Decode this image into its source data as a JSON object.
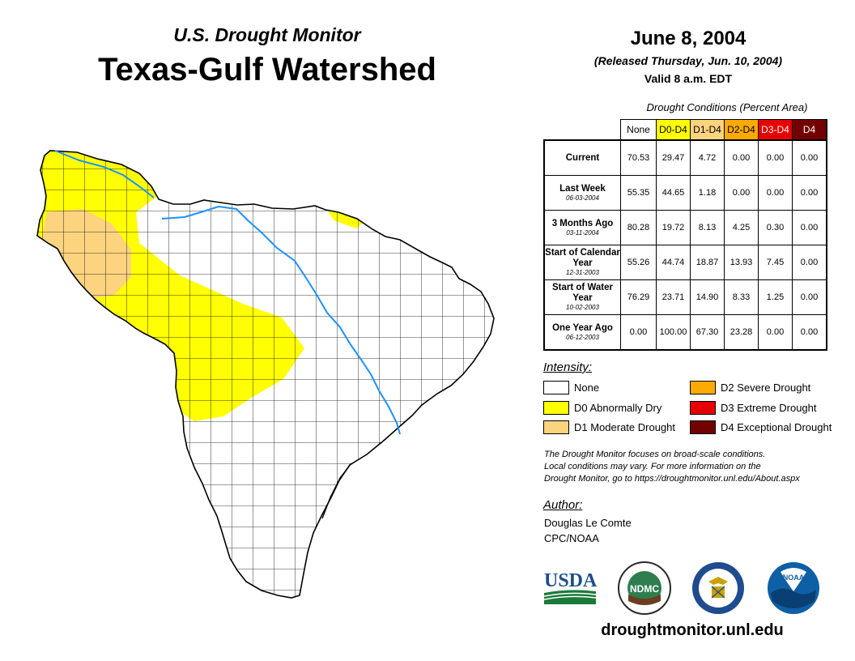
{
  "header": {
    "subtitle": "U.S. Drought Monitor",
    "title": "Texas-Gulf Watershed",
    "date": "June 8, 2004",
    "released": "(Released Thursday, Jun. 10, 2004)",
    "valid": "Valid 8 a.m. EDT"
  },
  "table": {
    "title": "Drought Conditions (Percent Area)",
    "columns": [
      "None",
      "D0-D4",
      "D1-D4",
      "D2-D4",
      "D3-D4",
      "D4"
    ],
    "column_colors": [
      "#ffffff",
      "#ffff00",
      "#fcd37f",
      "#ffaa00",
      "#e60000",
      "#730000"
    ],
    "rows": [
      {
        "label": "Current",
        "sub": "",
        "values": [
          "70.53",
          "29.47",
          "4.72",
          "0.00",
          "0.00",
          "0.00"
        ]
      },
      {
        "label": "Last Week",
        "sub": "06-03-2004",
        "values": [
          "55.35",
          "44.65",
          "1.18",
          "0.00",
          "0.00",
          "0.00"
        ]
      },
      {
        "label": "3 Months Ago",
        "sub": "03-11-2004",
        "values": [
          "80.28",
          "19.72",
          "8.13",
          "4.25",
          "0.30",
          "0.00"
        ]
      },
      {
        "label": "Start of Calendar Year",
        "sub": "12-31-2003",
        "values": [
          "55.26",
          "44.74",
          "18.87",
          "13.93",
          "7.45",
          "0.00"
        ]
      },
      {
        "label": "Start of Water Year",
        "sub": "10-02-2003",
        "values": [
          "76.29",
          "23.71",
          "14.90",
          "8.33",
          "1.25",
          "0.00"
        ]
      },
      {
        "label": "One Year Ago",
        "sub": "06-12-2003",
        "values": [
          "0.00",
          "100.00",
          "67.30",
          "23.28",
          "0.00",
          "0.00"
        ]
      }
    ]
  },
  "legend": {
    "title": "Intensity:",
    "items": [
      {
        "label": "None",
        "color": "#ffffff"
      },
      {
        "label": "D0 Abnormally Dry",
        "color": "#ffff00"
      },
      {
        "label": "D1 Moderate Drought",
        "color": "#fcd37f"
      },
      {
        "label": "D2 Severe Drought",
        "color": "#ffaa00"
      },
      {
        "label": "D3 Extreme Drought",
        "color": "#e60000"
      },
      {
        "label": "D4 Exceptional Drought",
        "color": "#730000"
      }
    ]
  },
  "note": {
    "line1": "The Drought Monitor focuses on broad-scale conditions.",
    "line2": "Local conditions may vary. For more information on the",
    "line3": "Drought Monitor, go to https://droughtmonitor.unl.edu/About.aspx"
  },
  "author": {
    "title": "Author:",
    "name": "Douglas Le Comte",
    "org": "CPC/NOAA"
  },
  "logos": {
    "usda": "USDA",
    "ndmc": "NDMC",
    "noaa": "NOAA"
  },
  "colors": {
    "d0": "#ffff00",
    "d1": "#fcd37f",
    "water": "#1e90ff"
  },
  "website": "droughtmonitor.unl.edu"
}
